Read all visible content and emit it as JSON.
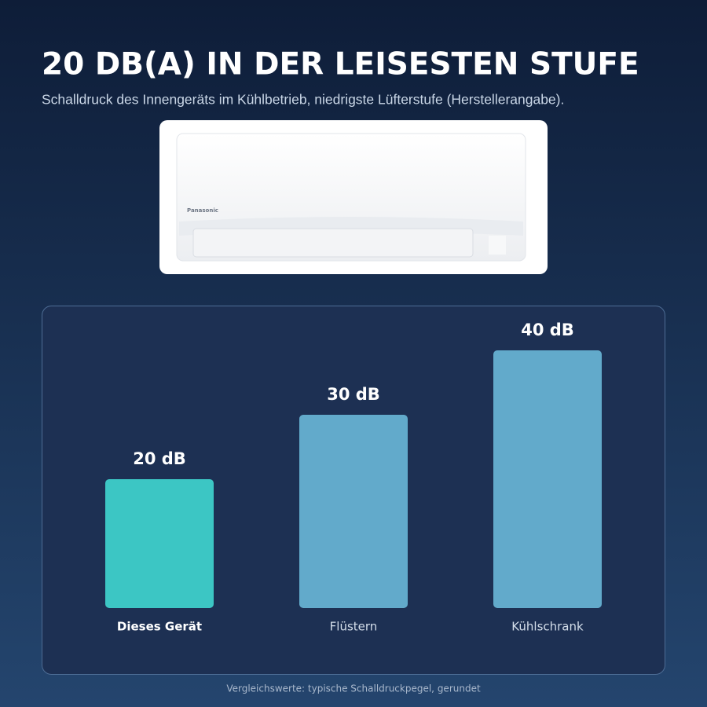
{
  "header": {
    "title": "20 DB(A) IN DER LEISESTEN STUFE",
    "subtitle": "Schalldruck des Innengeräts im Kühlbetrieb, niedrigste Lüfterstufe (Herstellerangabe)."
  },
  "product": {
    "brand": "Panasonic"
  },
  "chart_data": {
    "type": "bar",
    "categories": [
      "Dieses Gerät",
      "Flüstern",
      "Kühlschrank"
    ],
    "values": [
      20,
      30,
      40
    ],
    "value_labels": [
      "20 dB",
      "30 dB",
      "40 dB"
    ],
    "colors": [
      "#3cc6c4",
      "#62aacb",
      "#62aacb"
    ],
    "ylim": [
      0,
      40
    ]
  },
  "footnote": "Vergleichswerte: typische Schalldruckpegel, gerundet"
}
